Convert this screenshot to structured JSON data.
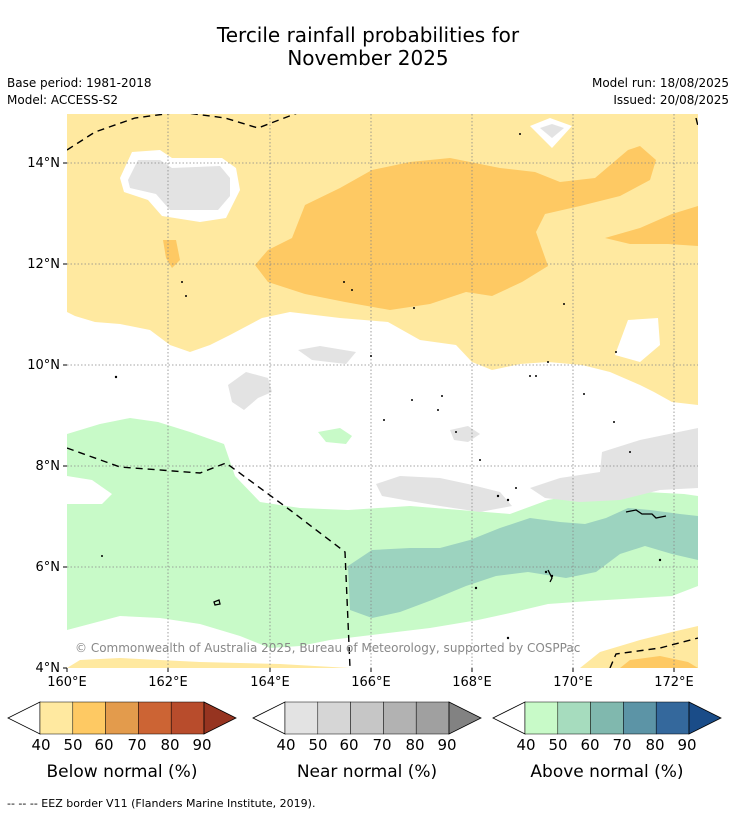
{
  "title": {
    "line1": "Tercile rainfall probabilities for",
    "line2": "November 2025"
  },
  "meta": {
    "base_period": "Base period: 1981-2018",
    "model": "Model: ACCESS-S2",
    "model_run": "Model run: 18/08/2025",
    "issued": "Issued: 20/08/2025"
  },
  "map": {
    "lat_ticks": [
      "14°N",
      "12°N",
      "10°N",
      "8°N",
      "6°N",
      "4°N"
    ],
    "lon_ticks": [
      "160°E",
      "162°E",
      "164°E",
      "166°E",
      "168°E",
      "170°E",
      "172°E"
    ],
    "copyright": "© Commonwealth of Australia 2025, Bureau of Meteorology, supported by COSPPac",
    "colors": {
      "below_40_50": "#ffe9a0",
      "below_50_60": "#fec963",
      "near_40_50": "#e3e3e3",
      "above_40_50": "#c8fac8",
      "above_50_60": "#9cd3bf",
      "eez_border": "#000000",
      "grid": "#888888"
    }
  },
  "colorbars": [
    {
      "name": "below",
      "title": "Below normal (%)",
      "ticks": [
        "40",
        "50",
        "60",
        "70",
        "80",
        "90"
      ],
      "colors": [
        "#ffe9a0",
        "#fec963",
        "#e39b4c",
        "#cc6434",
        "#b84c2c",
        "#963420"
      ]
    },
    {
      "name": "near",
      "title": "Near normal (%)",
      "ticks": [
        "40",
        "50",
        "60",
        "70",
        "80",
        "90"
      ],
      "colors": [
        "#e3e3e3",
        "#d6d6d6",
        "#c6c6c6",
        "#b2b2b2",
        "#a0a0a0",
        "#828282"
      ]
    },
    {
      "name": "above",
      "title": "Above normal (%)",
      "ticks": [
        "40",
        "50",
        "60",
        "70",
        "80",
        "90"
      ],
      "colors": [
        "#c8fac8",
        "#a6dcbe",
        "#80b8ae",
        "#5c94a6",
        "#34689c",
        "#1a4c88"
      ]
    }
  ],
  "footnote": "--  --  -- EEZ border V11 (Flanders Marine Institute, 2019)."
}
